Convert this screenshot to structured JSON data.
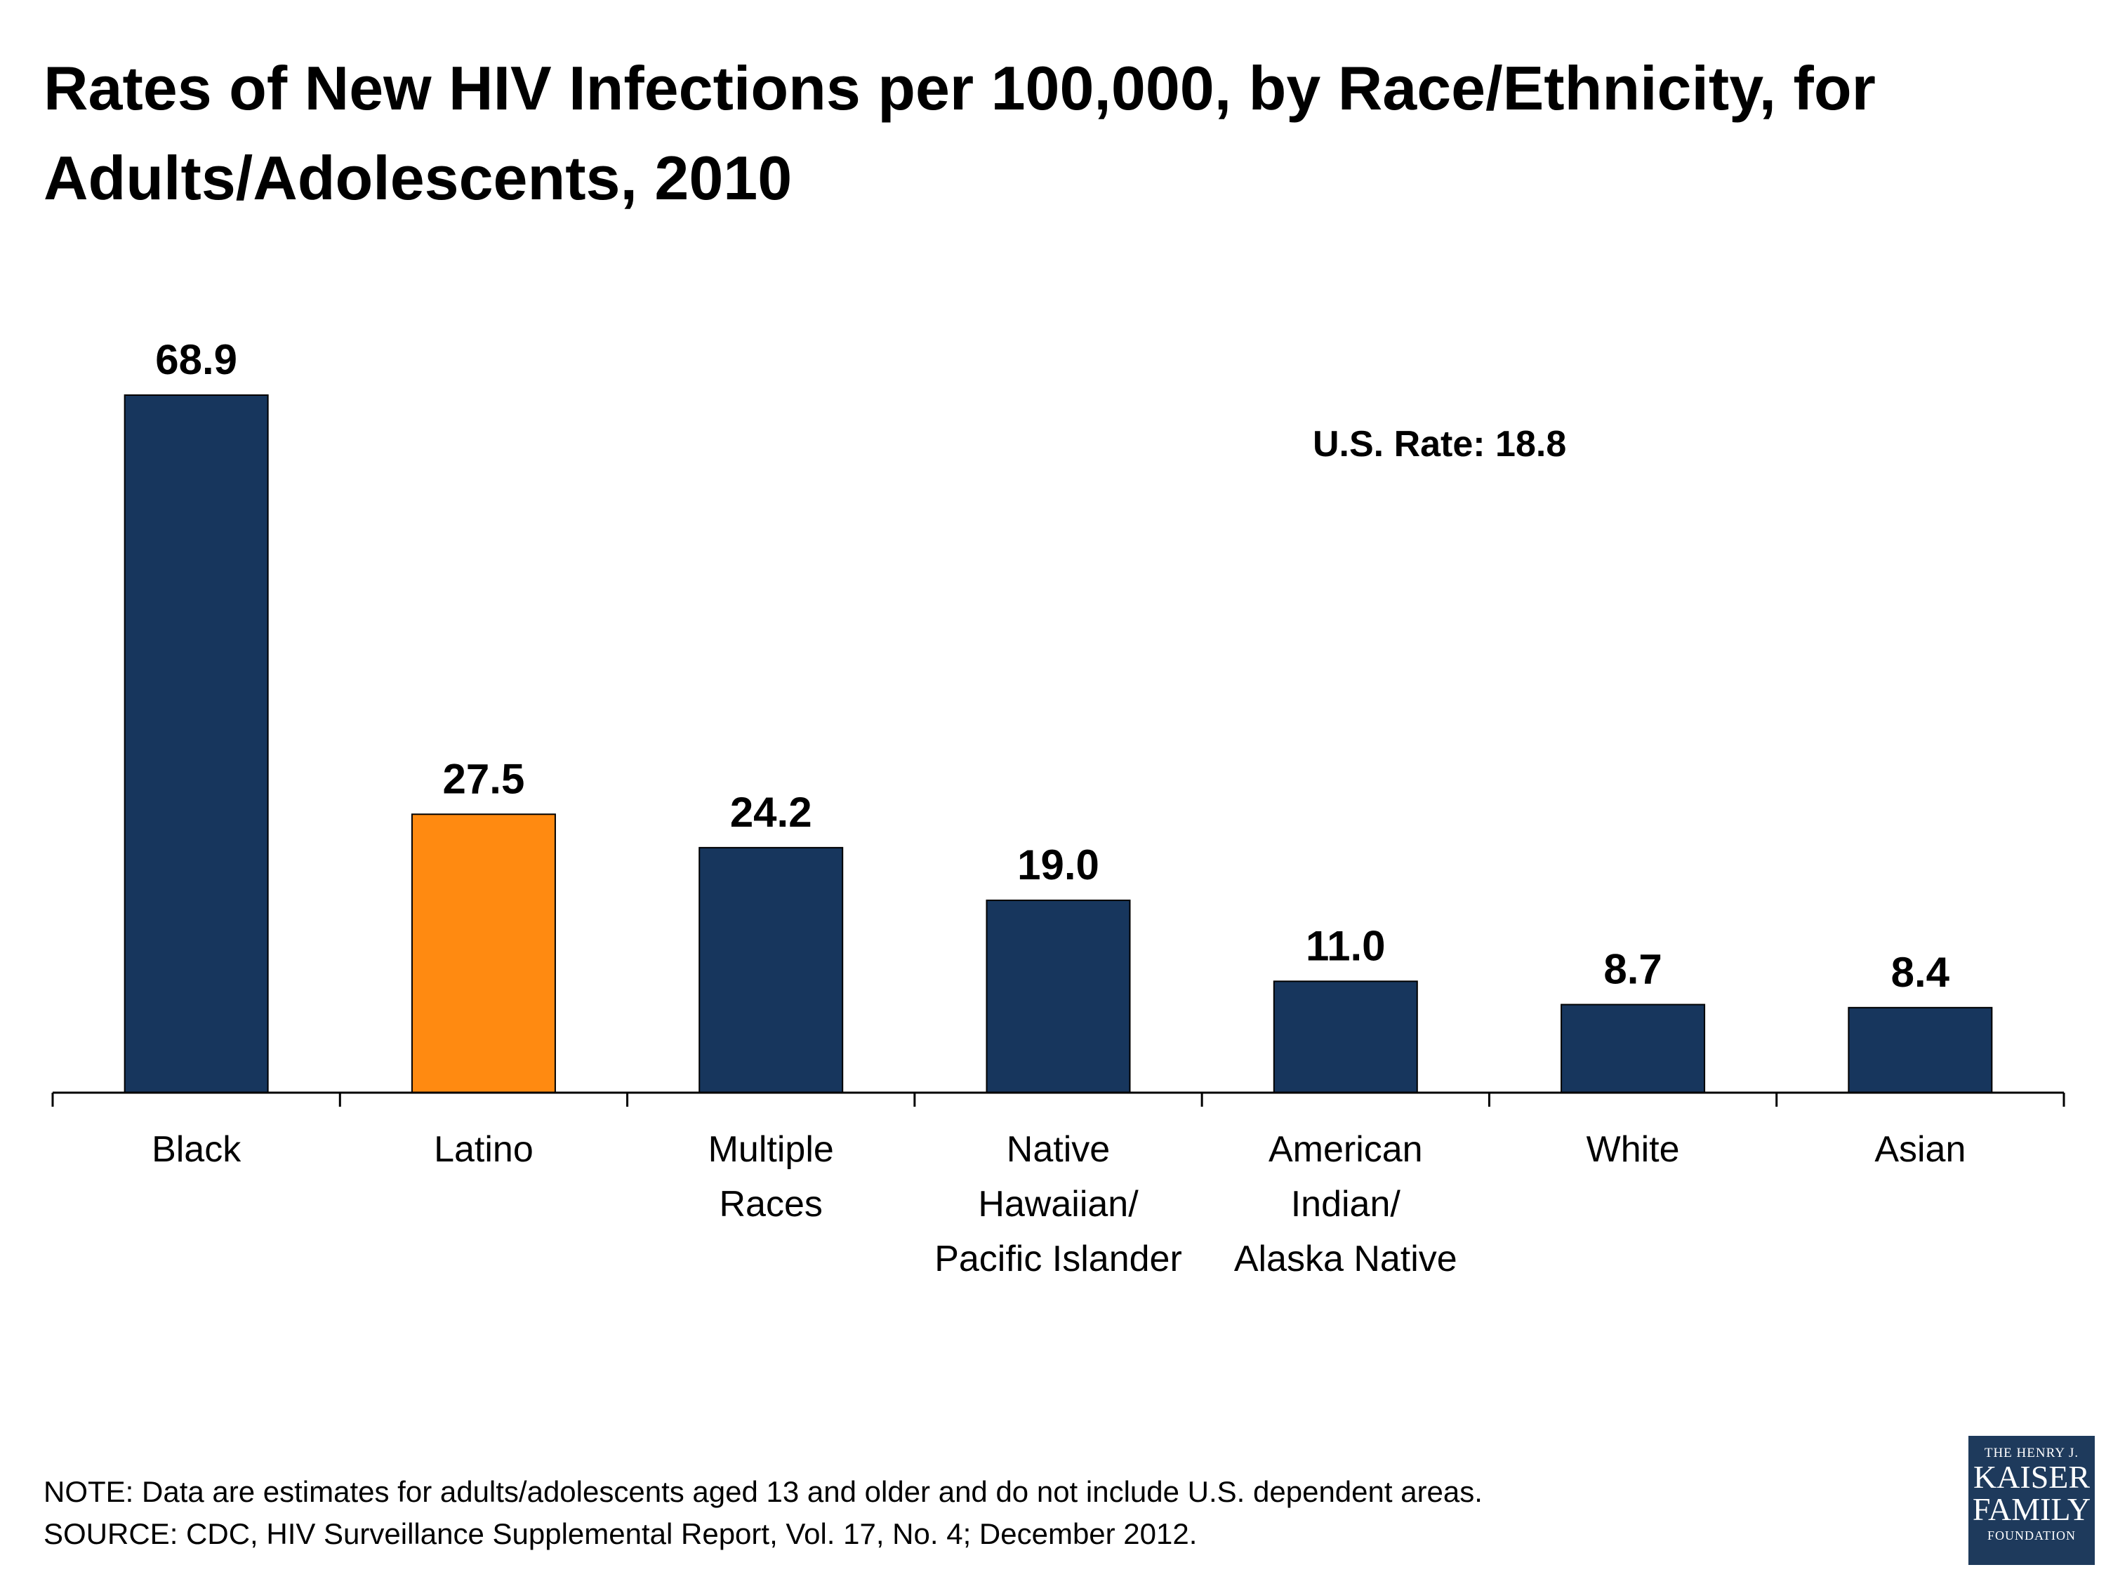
{
  "chart_data": {
    "type": "bar",
    "title": "Rates of New HIV Infections per 100,000, by Race/Ethnicity, for Adults/Adolescents, 2010",
    "categories": [
      [
        "Black"
      ],
      [
        "Latino"
      ],
      [
        "Multiple",
        "Races"
      ],
      [
        "Native",
        "Hawaiian/",
        "Pacific Islander"
      ],
      [
        "American",
        "Indian/",
        "Alaska Native"
      ],
      [
        "White"
      ],
      [
        "Asian"
      ]
    ],
    "values": [
      68.9,
      27.5,
      24.2,
      19.0,
      11.0,
      8.7,
      8.4
    ],
    "value_labels": [
      "68.9",
      "27.5",
      "24.2",
      "19.0",
      "11.0",
      "8.7",
      "8.4"
    ],
    "bar_colors": [
      "#17365d",
      "#ff8a11",
      "#17365d",
      "#17365d",
      "#17365d",
      "#17365d",
      "#17365d"
    ],
    "annotation": "U.S. Rate: 18.8",
    "ylim": [
      0,
      68.9
    ],
    "grid": false,
    "xlabel": "",
    "ylabel": ""
  },
  "footer": {
    "note": "NOTE: Data are estimates for adults/adolescents aged 13 and older and do not include U.S. dependent areas.",
    "source": "SOURCE: CDC, HIV Surveillance Supplemental Report, Vol. 17, No. 4; December 2012."
  },
  "logo": {
    "line1": "THE HENRY J.",
    "line2": "KAISER",
    "line3": "FAMILY",
    "line4": "FOUNDATION"
  }
}
